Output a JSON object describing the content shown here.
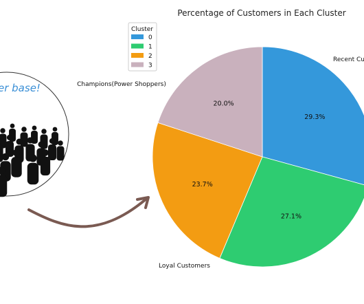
{
  "illustration": {
    "caption": "er base!",
    "crowd_icon": "crowd-of-people-icon",
    "arrow_icon": "curved-arrow-icon",
    "arrow_color": "#7a5a52"
  },
  "chart_data": {
    "type": "pie",
    "title": "Percentage of Customers in Each Cluster",
    "legend": {
      "title": "Cluster",
      "placement": "top-left",
      "entries": [
        "0",
        "1",
        "2",
        "3"
      ]
    },
    "start_angle_deg": 90,
    "direction": "clockwise",
    "slices": [
      {
        "cluster": "0",
        "segment": "Champions(Power Shoppers)",
        "value": 29.3,
        "label": "29.3%",
        "color": "#3498db"
      },
      {
        "cluster": "1",
        "segment": "Loyal Customers",
        "value": 27.1,
        "label": "27.1%",
        "color": "#2ecc71"
      },
      {
        "cluster": "2",
        "segment": "",
        "value": 23.7,
        "label": "23.7%",
        "color": "#f39c12"
      },
      {
        "cluster": "3",
        "segment": "Recent Cu",
        "value": 20.0,
        "label": "20.0%",
        "color": "#c9b1bd"
      }
    ]
  }
}
